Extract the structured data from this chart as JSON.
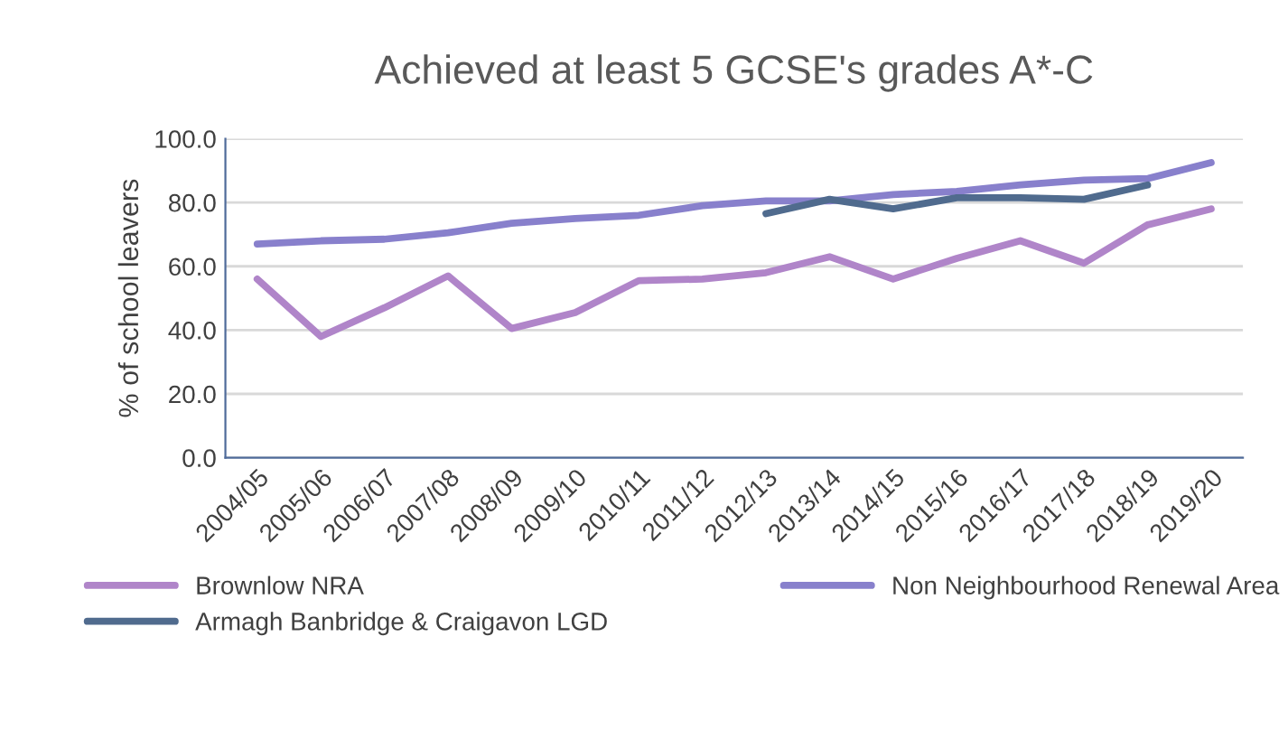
{
  "chart_data": {
    "type": "line",
    "title": "Achieved at least 5 GCSE's grades A*-C",
    "ylabel": "% of school leavers",
    "categories": [
      "2004/05",
      "2005/06",
      "2006/07",
      "2007/08",
      "2008/09",
      "2009/10",
      "2010/11",
      "2011/12",
      "2012/13",
      "2013/14",
      "2014/15",
      "2015/16",
      "2016/17",
      "2017/18",
      "2018/19",
      "2019/20"
    ],
    "series": [
      {
        "name": "Brownlow NRA",
        "color": "#b085c9",
        "values": [
          56,
          38,
          47,
          57,
          40.5,
          45.5,
          55.5,
          56,
          58,
          63,
          56,
          62.5,
          68,
          61,
          73,
          78
        ]
      },
      {
        "name": "Non Neighbourhood Renewal Area",
        "color": "#8880cc",
        "values": [
          67,
          68,
          68.5,
          70.5,
          73.5,
          75,
          76,
          79,
          80.5,
          80.5,
          82.5,
          83.5,
          85.5,
          87,
          87.5,
          92.5
        ]
      },
      {
        "name": "Armagh Banbridge & Craigavon LGD",
        "color": "#506b8e",
        "values": [
          null,
          null,
          null,
          null,
          null,
          null,
          null,
          null,
          76.5,
          81,
          78,
          81.5,
          81.5,
          81,
          85.5,
          null
        ]
      }
    ],
    "ylim": [
      0,
      100
    ],
    "yticks": [
      {
        "value": 0,
        "label": "0.0"
      },
      {
        "value": 20,
        "label": "20.0"
      },
      {
        "value": 40,
        "label": "40.0"
      },
      {
        "value": 60,
        "label": "60.0"
      },
      {
        "value": 80,
        "label": "80.0"
      },
      {
        "value": 100,
        "label": "100.0"
      }
    ],
    "grid": "y",
    "legend": "bottom",
    "marker": "none",
    "line_style": "solid"
  }
}
